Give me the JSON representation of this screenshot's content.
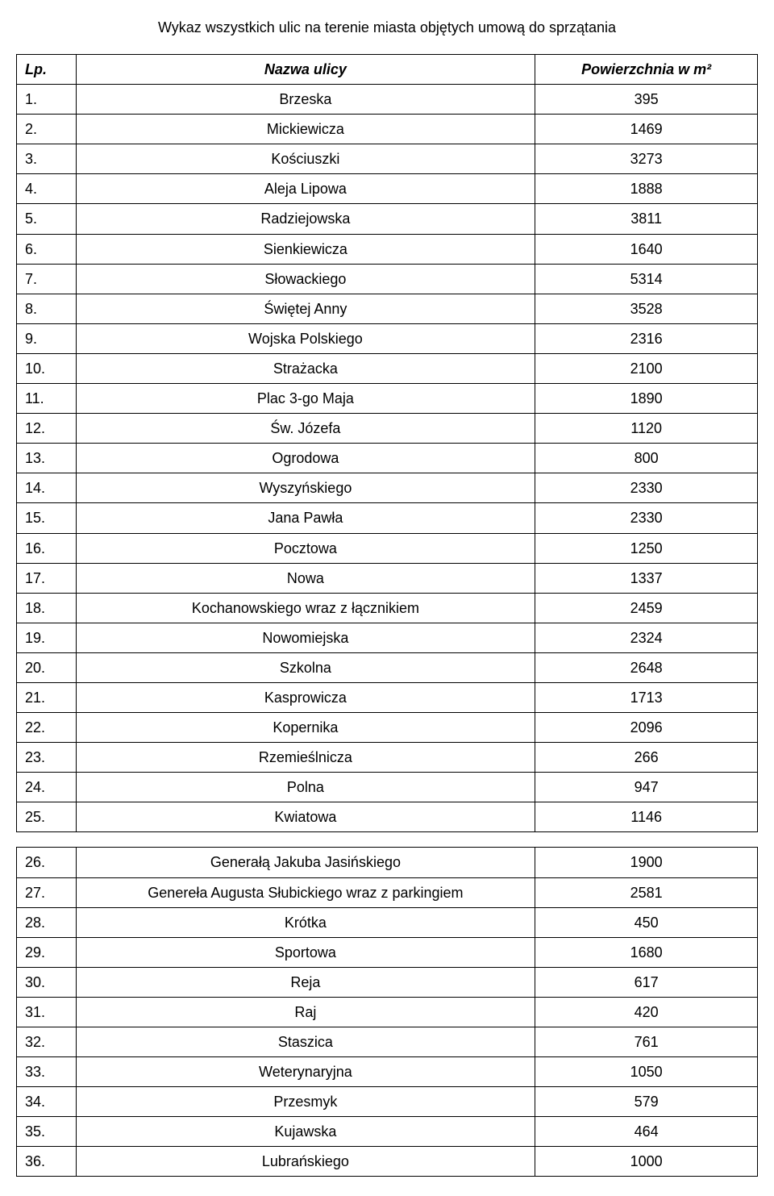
{
  "title": "Wykaz wszystkich ulic na terenie miasta objętych umową do sprzątania",
  "columns": {
    "lp": "Lp.",
    "name": "Nazwa ulicy",
    "area": "Powierzchnia w m²"
  },
  "rows": [
    {
      "lp": "1.",
      "name": "Brzeska",
      "area": "395"
    },
    {
      "lp": "2.",
      "name": "Mickiewicza",
      "area": "1469"
    },
    {
      "lp": "3.",
      "name": "Kościuszki",
      "area": "3273"
    },
    {
      "lp": "4.",
      "name": "Aleja Lipowa",
      "area": "1888"
    },
    {
      "lp": "5.",
      "name": "Radziejowska",
      "area": "3811"
    },
    {
      "lp": "6.",
      "name": "Sienkiewicza",
      "area": "1640"
    },
    {
      "lp": "7.",
      "name": "Słowackiego",
      "area": "5314"
    },
    {
      "lp": "8.",
      "name": "Świętej Anny",
      "area": "3528"
    },
    {
      "lp": "9.",
      "name": "Wojska Polskiego",
      "area": "2316"
    },
    {
      "lp": "10.",
      "name": "Strażacka",
      "area": "2100"
    },
    {
      "lp": "11.",
      "name": "Plac 3-go Maja",
      "area": "1890"
    },
    {
      "lp": "12.",
      "name": "Św. Józefa",
      "area": "1120"
    },
    {
      "lp": "13.",
      "name": "Ogrodowa",
      "area": "800"
    },
    {
      "lp": "14.",
      "name": "Wyszyńskiego",
      "area": "2330"
    },
    {
      "lp": "15.",
      "name": "Jana Pawła",
      "area": "2330"
    },
    {
      "lp": "16.",
      "name": "Pocztowa",
      "area": "1250"
    },
    {
      "lp": "17.",
      "name": "Nowa",
      "area": "1337"
    },
    {
      "lp": "18.",
      "name": "Kochanowskiego wraz z łącznikiem",
      "area": "2459"
    },
    {
      "lp": "19.",
      "name": "Nowomiejska",
      "area": "2324"
    },
    {
      "lp": "20.",
      "name": "Szkolna",
      "area": "2648"
    },
    {
      "lp": "21.",
      "name": "Kasprowicza",
      "area": "1713"
    },
    {
      "lp": "22.",
      "name": "Kopernika",
      "area": "2096"
    },
    {
      "lp": "23.",
      "name": "Rzemieślnicza",
      "area": "266"
    },
    {
      "lp": "24.",
      "name": "Polna",
      "area": "947"
    },
    {
      "lp": "25.",
      "name": "Kwiatowa",
      "area": "1146"
    },
    {
      "lp": "26.",
      "name": "Generałą Jakuba Jasińskiego",
      "area": "1900"
    },
    {
      "lp": "27.",
      "name": "Genereła Augusta Słubickiego wraz z parkingiem",
      "area": "2581"
    },
    {
      "lp": "28.",
      "name": "Krótka",
      "area": "450"
    },
    {
      "lp": "29.",
      "name": "Sportowa",
      "area": "1680"
    },
    {
      "lp": "30.",
      "name": "Reja",
      "area": "617"
    },
    {
      "lp": "31.",
      "name": "Raj",
      "area": "420"
    },
    {
      "lp": "32.",
      "name": "Staszica",
      "area": "761"
    },
    {
      "lp": "33.",
      "name": "Weterynaryjna",
      "area": "1050"
    },
    {
      "lp": "34.",
      "name": "Przesmyk",
      "area": "579"
    },
    {
      "lp": "35.",
      "name": "Kujawska",
      "area": "464"
    },
    {
      "lp": "36.",
      "name": "Lubrańskiego",
      "area": "1000"
    }
  ],
  "gap_after_index": 24
}
